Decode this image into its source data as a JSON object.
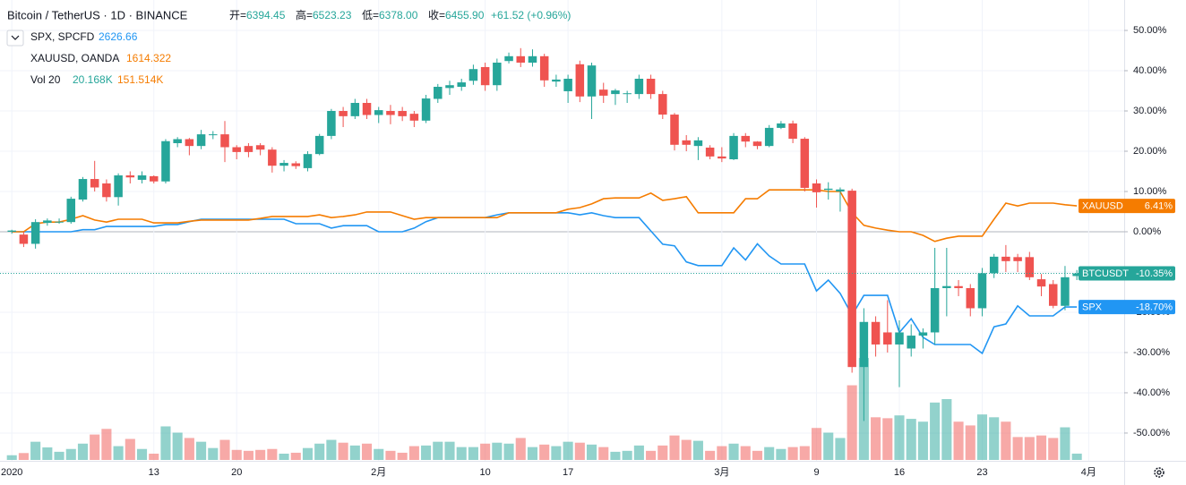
{
  "chart_data": {
    "type": "candlestick",
    "title": "Bitcoin / TetherUS · 1D · BINANCE",
    "ohlc": {
      "labels": [
        "开=",
        "高=",
        "低=",
        "收="
      ],
      "values": [
        6394.45,
        6523.23,
        6378,
        6455.9
      ],
      "value_labels": [
        "6394.45",
        "6523.23",
        "6378.00",
        "6455.90"
      ],
      "change": "+61.52 (+0.96%)"
    },
    "name": "BTCUSDT",
    "badge": "-10.35%",
    "up_color": "#26a69a",
    "down_color": "#ef5350",
    "x": [
      "2020-01-01",
      "2020-01-02",
      "2020-01-03",
      "2020-01-04",
      "2020-01-05",
      "2020-01-06",
      "2020-01-07",
      "2020-01-08",
      "2020-01-09",
      "2020-01-10",
      "2020-01-11",
      "2020-01-12",
      "2020-01-13",
      "2020-01-14",
      "2020-01-15",
      "2020-01-16",
      "2020-01-17",
      "2020-01-18",
      "2020-01-19",
      "2020-01-20",
      "2020-01-21",
      "2020-01-22",
      "2020-01-23",
      "2020-01-24",
      "2020-01-25",
      "2020-01-26",
      "2020-01-27",
      "2020-01-28",
      "2020-01-29",
      "2020-01-30",
      "2020-01-31",
      "2020-02-01",
      "2020-02-02",
      "2020-02-03",
      "2020-02-04",
      "2020-02-05",
      "2020-02-06",
      "2020-02-07",
      "2020-02-08",
      "2020-02-09",
      "2020-02-10",
      "2020-02-11",
      "2020-02-12",
      "2020-02-13",
      "2020-02-14",
      "2020-02-15",
      "2020-02-16",
      "2020-02-17",
      "2020-02-18",
      "2020-02-19",
      "2020-02-20",
      "2020-02-21",
      "2020-02-22",
      "2020-02-23",
      "2020-02-24",
      "2020-02-25",
      "2020-02-26",
      "2020-02-27",
      "2020-02-28",
      "2020-02-29",
      "2020-03-01",
      "2020-03-02",
      "2020-03-03",
      "2020-03-04",
      "2020-03-05",
      "2020-03-06",
      "2020-03-07",
      "2020-03-08",
      "2020-03-09",
      "2020-03-10",
      "2020-03-11",
      "2020-03-12",
      "2020-03-13",
      "2020-03-14",
      "2020-03-15",
      "2020-03-16",
      "2020-03-17",
      "2020-03-18",
      "2020-03-19",
      "2020-03-20",
      "2020-03-21",
      "2020-03-22",
      "2020-03-23",
      "2020-03-24",
      "2020-03-25",
      "2020-03-26",
      "2020-03-27",
      "2020-03-28",
      "2020-03-29",
      "2020-03-30",
      "2020-03-31"
    ],
    "open": [
      0,
      -0.7,
      -3,
      2.2,
      2.5,
      2.4,
      8,
      13.1,
      12,
      8.6,
      14,
      12.9,
      13.8,
      12.5,
      22,
      23,
      21.3,
      24,
      24.2,
      21,
      21.3,
      21.5,
      20.4,
      16.4,
      17,
      15.8,
      19.3,
      23.8,
      30,
      28.7,
      32,
      29,
      30,
      30,
      29.3,
      27.6,
      33,
      35.7,
      36,
      37.5,
      40.9,
      36.4,
      42.4,
      43.6,
      42,
      43.6,
      37.3,
      34.9,
      41.6,
      33.6,
      35.3,
      34.2,
      34.2,
      34.2,
      38,
      34.2,
      29.1,
      22.7,
      21.3,
      20.9,
      18.7,
      18,
      23.8,
      22.4,
      21.3,
      25.8,
      26.9,
      23.1,
      12,
      10.4,
      10,
      10.2,
      -33.6,
      -22.4,
      -25,
      -28,
      -29,
      -25.8,
      -25,
      -14,
      -13.5,
      -14,
      -19,
      -10.3,
      -6.2,
      -6.3,
      -6.3,
      -11.8,
      -13,
      -18.4,
      -11
    ],
    "high": [
      0.5,
      0,
      3.1,
      3.3,
      3.3,
      8.7,
      13.6,
      17.6,
      13,
      14.5,
      15,
      15,
      14,
      23,
      23.5,
      23.3,
      25.3,
      25,
      27.5,
      21.5,
      22,
      22,
      21,
      17.8,
      17.5,
      20,
      24.3,
      30.5,
      31,
      33,
      33,
      31,
      31.5,
      31,
      30,
      34,
      36.7,
      37.5,
      38,
      41.5,
      42,
      43,
      44.5,
      45.6,
      45.3,
      44.2,
      39,
      39,
      42.5,
      42,
      37,
      35.5,
      35,
      39,
      39,
      35,
      29.5,
      24,
      23.5,
      21.5,
      21,
      24.5,
      24.5,
      22.5,
      26.5,
      27.5,
      27.6,
      23.5,
      13,
      12.3,
      11,
      10.7,
      -19,
      -21,
      -17,
      -22,
      -23,
      -24,
      -4,
      -4,
      -12,
      -13,
      -9,
      -5.5,
      -3.3,
      -5.5,
      -5,
      -10.5,
      -12,
      -8.5,
      -9.5
    ],
    "low": [
      -0.5,
      -3.8,
      -4.2,
      1.5,
      2,
      2,
      7.5,
      10,
      7.5,
      6.5,
      12,
      12,
      12,
      12,
      21,
      19,
      20.5,
      23,
      17.3,
      18,
      18.5,
      19,
      14.7,
      15,
      15.6,
      15,
      19,
      23,
      26,
      28,
      28,
      27,
      26.7,
      27.5,
      26,
      27,
      32,
      34,
      35,
      36.5,
      35,
      35,
      41.8,
      40.9,
      41,
      36,
      36,
      32,
      32.2,
      28,
      32,
      31.5,
      32,
      33,
      33,
      28,
      20.2,
      20,
      17.8,
      18,
      17.3,
      17.8,
      21,
      20.5,
      21,
      25.5,
      22,
      10,
      6,
      8,
      5,
      -35,
      -47,
      -31,
      -30,
      -38.6,
      -31,
      -29,
      -28,
      -21,
      -16,
      -21,
      -21,
      -11.5,
      -10,
      -10,
      -12,
      -16,
      -19,
      -19.5,
      -12
    ],
    "close": [
      0.3,
      -3,
      2.4,
      2.8,
      2.5,
      8.2,
      13.1,
      11,
      8.6,
      14,
      13.5,
      14,
      12.5,
      22.5,
      23,
      21.3,
      24.2,
      24.2,
      21,
      19.8,
      19.8,
      20.4,
      16.4,
      17.1,
      16.3,
      19.3,
      23.8,
      30,
      28.7,
      32,
      29,
      30.2,
      29,
      28.7,
      27.6,
      33.1,
      36,
      36.4,
      37.1,
      40.4,
      36.4,
      42,
      43.6,
      42,
      43.6,
      37.6,
      37.8,
      38,
      33.6,
      41.3,
      33.8,
      35.1,
      34.4,
      38,
      34.2,
      29.1,
      21.6,
      21.6,
      22.7,
      18.7,
      18.2,
      23.8,
      22.4,
      21.3,
      25.8,
      26.9,
      23.1,
      10.9,
      9.8,
      10.7,
      10.5,
      -33.6,
      -22.4,
      -28,
      -28,
      -25,
      -25.8,
      -25,
      -14,
      -13.5,
      -14,
      -19,
      -10.3,
      -6.2,
      -7.3,
      -7.3,
      -11.3,
      -13.6,
      -18.4,
      -11.3,
      -10.35
    ],
    "series": [
      {
        "name": "SPX",
        "legend": "SPX, SPCFD",
        "last": 2626.66,
        "badge": "-18.70%",
        "color": "#2196f3",
        "values": [
          0,
          0,
          0,
          0,
          0,
          0,
          0.5,
          0.5,
          1.3,
          1.3,
          1.3,
          1.3,
          1.3,
          1.8,
          1.8,
          2.5,
          3.1,
          3.1,
          3.1,
          3.1,
          3.1,
          3.1,
          3.1,
          3.1,
          2,
          2,
          2,
          0.9,
          1.5,
          1.5,
          1.5,
          0,
          0,
          0,
          0.9,
          2.5,
          3.5,
          3.5,
          3.5,
          3.5,
          3.5,
          4.2,
          4.7,
          4.7,
          4.7,
          4.7,
          4.7,
          4.7,
          4.2,
          4.7,
          4,
          3.5,
          3.5,
          3.5,
          0.2,
          -3.1,
          -3.5,
          -7.5,
          -8.4,
          -8.4,
          -8.4,
          -4,
          -7,
          -3,
          -6,
          -8,
          -8,
          -8,
          -14.7,
          -12,
          -15.3,
          -20.7,
          -15.8,
          -15.8,
          -15.8,
          -25,
          -21.6,
          -26.2,
          -28,
          -28,
          -28,
          -28,
          -30.2,
          -23.6,
          -22.9,
          -18.4,
          -20.9,
          -20.9,
          -20.9,
          -18.7,
          -18.7
        ]
      },
      {
        "name": "XAUUSD",
        "legend": "XAUUSD, OANDA",
        "last": 1614.322,
        "badge": "6.41%",
        "color": "#f57c00",
        "values": [
          0,
          0,
          2,
          2.4,
          2.4,
          3.1,
          4,
          2.9,
          2.4,
          3.1,
          3.1,
          3.1,
          2.2,
          2.2,
          2.2,
          2.6,
          2.9,
          2.9,
          2.9,
          2.9,
          2.9,
          3.3,
          3.8,
          3.8,
          3.8,
          3.8,
          4.2,
          3.5,
          3.8,
          4.2,
          4.9,
          4.9,
          4.9,
          4,
          3.1,
          3.5,
          3.5,
          3.5,
          3.5,
          3.5,
          3.5,
          3.5,
          4.7,
          4.7,
          4.7,
          4.7,
          4.7,
          5.6,
          6,
          6.9,
          8.2,
          8.4,
          8.4,
          8.4,
          9.6,
          7.8,
          8.2,
          8.7,
          4.7,
          4.7,
          4.7,
          4.7,
          8.2,
          8.2,
          10.4,
          10.4,
          10.4,
          10.4,
          10.4,
          10,
          10,
          4.7,
          1.6,
          0.9,
          0.4,
          0,
          0,
          -0.9,
          -2.4,
          -1.6,
          -1.1,
          -1.1,
          -1.1,
          3.1,
          7.1,
          6.4,
          7.1,
          7.1,
          7.1,
          6.7,
          6.41
        ]
      }
    ],
    "volume": {
      "legend": "Vol 20",
      "last": "20.168K",
      "ma": "151.514K",
      "ma_color": "#f57c00",
      "up_color": "#26a69a",
      "down_color": "#ef5350",
      "vlim": [
        0,
        348
      ],
      "values": [
        15,
        22,
        58,
        40,
        26,
        35,
        52,
        81,
        99,
        44,
        67,
        35,
        20,
        107,
        87,
        70,
        58,
        38,
        64,
        32,
        29,
        32,
        35,
        20,
        23,
        38,
        52,
        64,
        55,
        46,
        52,
        35,
        29,
        23,
        44,
        46,
        58,
        58,
        41,
        41,
        52,
        55,
        52,
        70,
        41,
        49,
        44,
        58,
        55,
        49,
        41,
        26,
        29,
        46,
        29,
        46,
        78,
        64,
        61,
        29,
        44,
        52,
        44,
        29,
        41,
        35,
        41,
        44,
        102,
        87,
        70,
        238,
        325,
        136,
        133,
        142,
        131,
        122,
        183,
        194,
        122,
        110,
        145,
        136,
        122,
        73,
        73,
        78,
        70,
        104,
        20.168
      ]
    },
    "xlim": [
      "2019-12-31",
      "2020-04-04"
    ],
    "xticks": [
      {
        "value": "2020-01-01",
        "label": "2020"
      },
      {
        "value": "2020-01-13",
        "label": "13"
      },
      {
        "value": "2020-01-20",
        "label": "20"
      },
      {
        "value": "2020-02-01",
        "label": "2月"
      },
      {
        "value": "2020-02-10",
        "label": "10"
      },
      {
        "value": "2020-02-17",
        "label": "17"
      },
      {
        "value": "2020-03-01",
        "label": "3月"
      },
      {
        "value": "2020-03-09",
        "label": "9"
      },
      {
        "value": "2020-03-16",
        "label": "16"
      },
      {
        "value": "2020-03-23",
        "label": "23"
      },
      {
        "value": "2020-04-01",
        "label": "4月"
      }
    ],
    "ylim": [
      -56.9,
      57.56
    ],
    "yticks": [
      {
        "value": -50,
        "label": "-50.00%"
      },
      {
        "value": -40,
        "label": "-40.00%"
      },
      {
        "value": -30,
        "label": "-30.00%"
      },
      {
        "value": -20,
        "label": "-20.00%"
      },
      {
        "value": -10,
        "label": "-10.00%"
      },
      {
        "value": 0,
        "label": "0.00%"
      },
      {
        "value": 10,
        "label": "10.00%"
      },
      {
        "value": 20,
        "label": "20.00%"
      },
      {
        "value": 30,
        "label": "30.00%"
      },
      {
        "value": 40,
        "label": "40.00%"
      },
      {
        "value": 50,
        "label": "50.00%"
      }
    ],
    "grid": true
  }
}
